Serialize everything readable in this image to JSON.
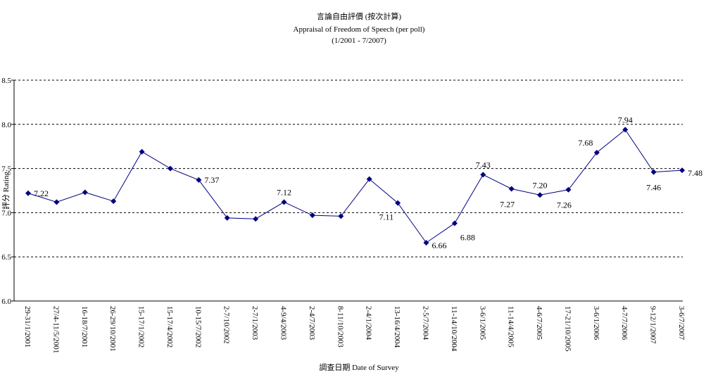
{
  "chart_data": {
    "type": "line",
    "title": "言論自由評價 (按次計算)",
    "subtitle": "Appraisal of Freedom of Speech (per poll)",
    "period": "(1/2001 - 7/2007)",
    "x_label": "調查日期 Date of Survey",
    "y_label": "評分 Rating",
    "categories": [
      "29-31/1/2001",
      "27/4-11/5/2001",
      "16-18/7/2001",
      "26-29/10/2001",
      "15-17/1/2002",
      "15-17/4/2002",
      "10-15/7/2002",
      "2-7/10/2002",
      "2-7/1/2003",
      "4-9/4/2003",
      "2-4/7/2003",
      "8-11/10/2003",
      "2-4/1/2004",
      "13-16/4/2004",
      "2-5/7/2004",
      "11-14/10/2004",
      "3-6/1/2005",
      "11-14/4/2005",
      "4-6/7/2005",
      "17-21/10/2005",
      "3-6/1/2006",
      "4-7/7/2006",
      "9-12/1/2007",
      "3-6/7/2007"
    ],
    "series": [
      {
        "name": "評分 Rating",
        "color": "#000080",
        "values": [
          7.22,
          7.12,
          7.23,
          7.13,
          7.69,
          7.5,
          7.37,
          6.94,
          6.93,
          7.12,
          6.97,
          6.96,
          7.38,
          7.11,
          6.66,
          6.88,
          7.43,
          7.27,
          7.2,
          7.26,
          7.68,
          7.94,
          7.46,
          7.48
        ],
        "value_labels": [
          "7.22",
          null,
          null,
          null,
          null,
          null,
          "7.37",
          null,
          null,
          "7.12",
          null,
          null,
          null,
          "7.11",
          "6.66",
          "6.88",
          "7.43",
          "7.27",
          "7.20",
          "7.26",
          "7.68",
          "7.94",
          "7.46",
          "7.48"
        ]
      }
    ],
    "ylim": [
      6.0,
      8.5
    ],
    "yticks": [
      {
        "value": 6.0,
        "label": "6.0"
      },
      6.5,
      {
        "value": 7.0,
        "label": "7.0"
      },
      7.5,
      {
        "value": 8.0,
        "label": "8.0"
      },
      8.5
    ],
    "grid": true
  }
}
